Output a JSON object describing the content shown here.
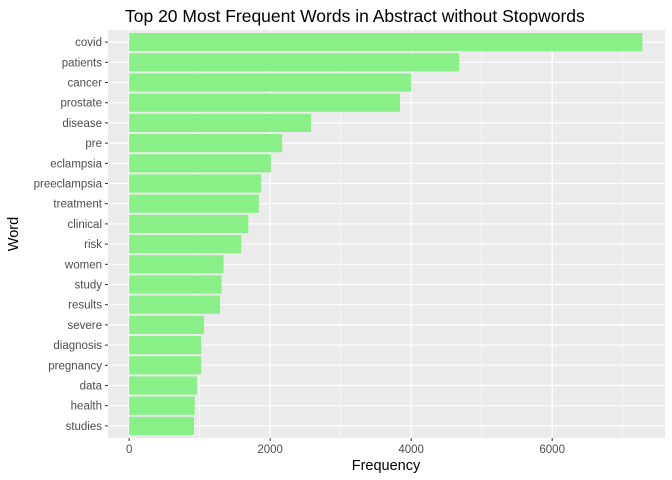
{
  "chart_data": {
    "type": "bar",
    "orientation": "horizontal",
    "title": "Top 20 Most Frequent Words in Abstract without Stopwords",
    "xlabel": "Frequency",
    "ylabel": "Word",
    "categories": [
      "covid",
      "patients",
      "cancer",
      "prostate",
      "disease",
      "pre",
      "eclampsia",
      "preeclampsia",
      "treatment",
      "clinical",
      "risk",
      "women",
      "study",
      "results",
      "severe",
      "diagnosis",
      "pregnancy",
      "data",
      "health",
      "studies"
    ],
    "values": [
      7280,
      4680,
      4000,
      3840,
      2580,
      2170,
      2010,
      1870,
      1840,
      1690,
      1590,
      1340,
      1310,
      1290,
      1060,
      1020,
      1020,
      960,
      930,
      920
    ],
    "xlim": [
      -300,
      7600
    ],
    "xticks": [
      0,
      2000,
      4000,
      6000
    ],
    "xtick_labels": [
      "0",
      "2000",
      "4000",
      "6000"
    ],
    "grid": true,
    "legend": "none",
    "colors": {
      "bar": "#88f086",
      "panel": "#ebebeb",
      "grid": "#ffffff"
    }
  }
}
